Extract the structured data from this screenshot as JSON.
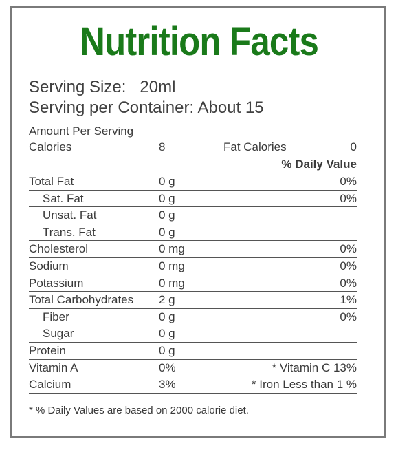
{
  "title": "Nutrition Facts",
  "title_color": "#1a7a1a",
  "serving": {
    "size": "Serving Size:   20ml",
    "per_container": "Serving per Container: About 15"
  },
  "header": {
    "amount_per_serving": "Amount Per Serving",
    "calories_label": "Calories",
    "calories_value": "8",
    "fat_calories_label": "Fat Calories",
    "fat_calories_value": "0",
    "daily_value_header": "% Daily Value"
  },
  "nutrients": [
    {
      "name": "Total Fat",
      "amount": "0 g",
      "dv": "0%",
      "indent": false
    },
    {
      "name": "Sat. Fat",
      "amount": "0 g",
      "dv": "0%",
      "indent": true
    },
    {
      "name": "Unsat. Fat",
      "amount": "0 g",
      "dv": "",
      "indent": true
    },
    {
      "name": "Trans. Fat",
      "amount": "0 g",
      "dv": "",
      "indent": true
    },
    {
      "name": "Cholesterol",
      "amount": "0 mg",
      "dv": "0%",
      "indent": false
    },
    {
      "name": "Sodium",
      "amount": "0 mg",
      "dv": "0%",
      "indent": false
    },
    {
      "name": "Potassium",
      "amount": "0 mg",
      "dv": "0%",
      "indent": false
    },
    {
      "name": "Total Carbohydrates",
      "amount": "2 g",
      "dv": "1%",
      "indent": false
    },
    {
      "name": "Fiber",
      "amount": "0 g",
      "dv": "0%",
      "indent": true
    },
    {
      "name": "Sugar",
      "amount": "0 g",
      "dv": "",
      "indent": true
    },
    {
      "name": "Protein",
      "amount": "0 g",
      "dv": "",
      "indent": false
    }
  ],
  "vitamins": [
    {
      "name": "Vitamin A",
      "amount": "0%",
      "other": "* Vitamin C 13%"
    },
    {
      "name": "Calcium",
      "amount": "3%",
      "other": "* Iron Less than 1 %"
    }
  ],
  "footnote": "* % Daily Values are based on 2000 calorie diet."
}
